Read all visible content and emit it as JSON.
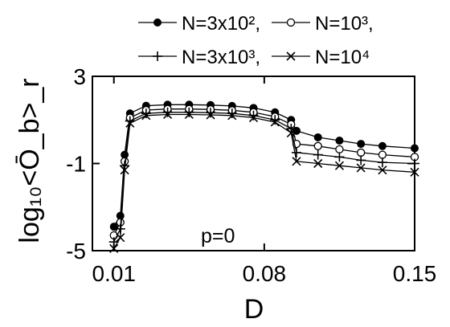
{
  "chart_data": {
    "type": "line",
    "xlabel": "D",
    "ylabel": "log₁₀<Ō_b>_r",
    "annotation": "p=0",
    "xlim": [
      0.0,
      0.15
    ],
    "ylim": [
      -5,
      3
    ],
    "xticks": [
      {
        "value": 0.01,
        "label": "0.01"
      },
      {
        "value": 0.08,
        "label": "0.08"
      },
      {
        "value": 0.15,
        "label": "0.15"
      }
    ],
    "yticks": [
      {
        "value": 3,
        "label": "3"
      },
      {
        "value": -1,
        "label": "-1"
      },
      {
        "value": -5,
        "label": "-5"
      }
    ],
    "legend_position": "top",
    "series": [
      {
        "name": "N=3x10²,",
        "marker": "filled-circle",
        "x": [
          0.01,
          0.013,
          0.015,
          0.0175,
          0.025,
          0.035,
          0.045,
          0.055,
          0.065,
          0.075,
          0.085,
          0.0925,
          0.095,
          0.105,
          0.115,
          0.125,
          0.135,
          0.15
        ],
        "y": [
          -3.9,
          -3.4,
          -0.6,
          1.3,
          1.65,
          1.7,
          1.7,
          1.68,
          1.64,
          1.55,
          1.35,
          1.0,
          0.5,
          0.2,
          0.05,
          -0.1,
          -0.2,
          -0.3
        ]
      },
      {
        "name": "N=10³,",
        "marker": "open-circle",
        "x": [
          0.01,
          0.013,
          0.015,
          0.0175,
          0.025,
          0.035,
          0.045,
          0.055,
          0.065,
          0.075,
          0.085,
          0.0925,
          0.095,
          0.105,
          0.115,
          0.125,
          0.135,
          0.15
        ],
        "y": [
          -4.3,
          -3.7,
          -0.9,
          1.1,
          1.45,
          1.5,
          1.5,
          1.48,
          1.44,
          1.35,
          1.15,
          0.8,
          -0.1,
          -0.2,
          -0.35,
          -0.5,
          -0.6,
          -0.7
        ]
      },
      {
        "name": "N=3x10³,",
        "marker": "plus",
        "x": [
          0.01,
          0.013,
          0.015,
          0.0175,
          0.025,
          0.035,
          0.045,
          0.055,
          0.065,
          0.075,
          0.085,
          0.0925,
          0.095,
          0.105,
          0.115,
          0.125,
          0.135,
          0.15
        ],
        "y": [
          -4.6,
          -4.0,
          -1.1,
          0.95,
          1.3,
          1.35,
          1.35,
          1.33,
          1.3,
          1.2,
          1.0,
          0.6,
          -0.5,
          -0.6,
          -0.7,
          -0.85,
          -0.95,
          -1.0
        ]
      },
      {
        "name": "N=10⁴",
        "marker": "cross",
        "x": [
          0.01,
          0.013,
          0.015,
          0.0175,
          0.025,
          0.035,
          0.045,
          0.055,
          0.065,
          0.075,
          0.085,
          0.0925,
          0.095,
          0.105,
          0.115,
          0.125,
          0.135,
          0.15
        ],
        "y": [
          -4.9,
          -4.4,
          -1.3,
          0.85,
          1.2,
          1.25,
          1.25,
          1.23,
          1.2,
          1.1,
          0.9,
          0.4,
          -0.9,
          -1.0,
          -1.1,
          -1.2,
          -1.3,
          -1.4
        ]
      }
    ]
  }
}
